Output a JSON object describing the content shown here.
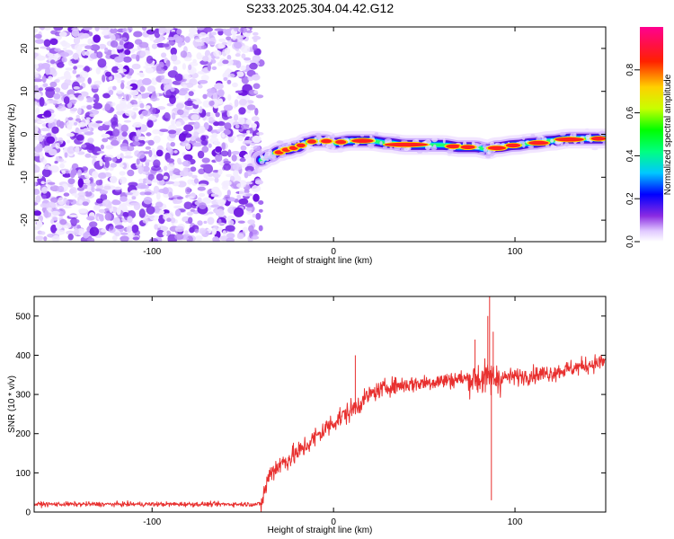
{
  "figure": {
    "title": "S233.2025.304.04.42.G12"
  },
  "chart_data": [
    {
      "type": "heatmap",
      "xlabel": "Height of straight line (km)",
      "ylabel": "Frequency (Hz)",
      "xlim": [
        -165,
        150
      ],
      "ylim": [
        -25,
        25
      ],
      "x_ticks": [
        -100,
        0,
        100
      ],
      "y_ticks": [
        -20,
        -10,
        0,
        10,
        20
      ],
      "noise_region_x": [
        -165,
        -40
      ],
      "ridge": {
        "x": [
          -40,
          -35,
          -30,
          -25,
          -20,
          -15,
          -10,
          -5,
          0,
          10,
          20,
          30,
          40,
          50,
          60,
          70,
          78,
          85,
          90,
          100,
          110,
          120,
          130,
          140,
          150
        ],
        "y": [
          -6,
          -5,
          -4,
          -3.5,
          -3,
          -2,
          -1.5,
          -1.5,
          -2,
          -1.5,
          -1.5,
          -2,
          -2.5,
          -2.5,
          -2.5,
          -3,
          -3,
          -3.5,
          -3,
          -2.5,
          -2,
          -1.5,
          -1,
          -1,
          -1
        ]
      },
      "colorbar": {
        "label": "Normalized spectral amplitude",
        "range": [
          0,
          1
        ],
        "ticks": [
          "0.0",
          "0.2",
          "0.4",
          "0.6",
          "0.8"
        ]
      }
    },
    {
      "type": "line",
      "xlabel": "Height of straight line (km)",
      "ylabel": "SNR (10 * v/v)",
      "xlim": [
        -165,
        150
      ],
      "ylim": [
        0,
        550
      ],
      "x_ticks": [
        -100,
        0,
        100
      ],
      "y_ticks": [
        0,
        100,
        200,
        300,
        400,
        500
      ],
      "color": "#e8302f",
      "trend": {
        "x": [
          -165,
          -40,
          -35,
          -30,
          -20,
          -10,
          0,
          10,
          20,
          30,
          50,
          70,
          80,
          100,
          120,
          150
        ],
        "y": [
          20,
          20,
          100,
          120,
          150,
          190,
          230,
          260,
          300,
          320,
          330,
          340,
          340,
          345,
          355,
          385
        ]
      },
      "spikes": [
        {
          "x": 12,
          "y": 400
        },
        {
          "x": 78,
          "y": 440
        },
        {
          "x": 85,
          "y": 500
        },
        {
          "x": 86,
          "y": 550
        },
        {
          "x": 87,
          "y": 30
        },
        {
          "x": 88,
          "y": 460
        }
      ]
    }
  ]
}
